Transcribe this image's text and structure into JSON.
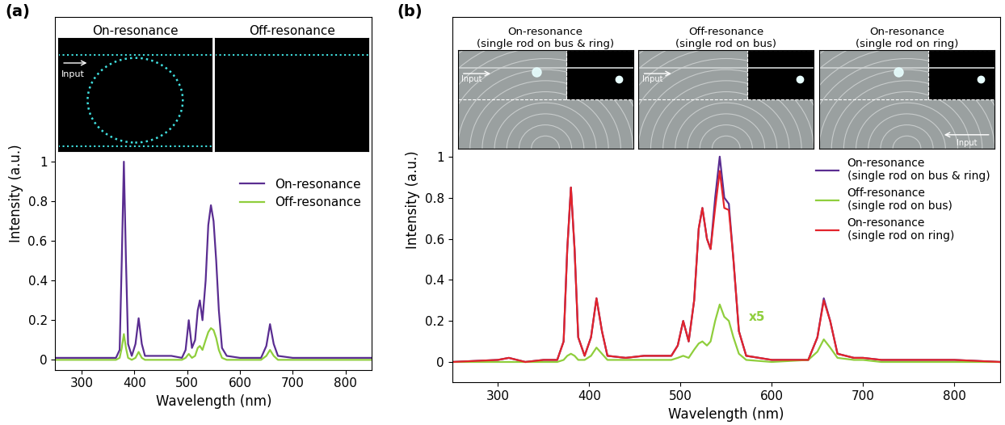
{
  "chart_data": [
    {
      "type": "line",
      "panel": "(a)",
      "x_label": "Wavelength (nm)",
      "y_label": "Intensity (a.u.)",
      "xlim": [
        250,
        850
      ],
      "xticks": [
        300,
        400,
        500,
        600,
        700,
        800
      ],
      "ylim": [
        -0.05,
        1.73
      ],
      "yticks": [
        0,
        0.2,
        0.4,
        0.6,
        0.8,
        1
      ],
      "legend": "center right",
      "insets": [
        {
          "title": "On-resonance",
          "input": "Input"
        },
        {
          "title": "Off-resonance"
        }
      ],
      "x": [
        250,
        300,
        350,
        365,
        372,
        376,
        380,
        384,
        388,
        395,
        402,
        408,
        414,
        420,
        440,
        470,
        490,
        497,
        503,
        509,
        515,
        520,
        524,
        529,
        535,
        540,
        545,
        550,
        555,
        560,
        566,
        575,
        600,
        640,
        650,
        657,
        664,
        672,
        700,
        750,
        800,
        850
      ],
      "series": [
        {
          "name": "On-resonance",
          "color": "#5a2d91",
          "values": [
            0.01,
            0.01,
            0.01,
            0.01,
            0.05,
            0.5,
            1.0,
            0.5,
            0.08,
            0.02,
            0.08,
            0.21,
            0.08,
            0.02,
            0.02,
            0.02,
            0.01,
            0.05,
            0.2,
            0.06,
            0.1,
            0.25,
            0.3,
            0.2,
            0.4,
            0.68,
            0.78,
            0.7,
            0.5,
            0.25,
            0.06,
            0.02,
            0.01,
            0.01,
            0.07,
            0.18,
            0.08,
            0.02,
            0.01,
            0.01,
            0.01,
            0.01
          ]
        },
        {
          "name": "Off-resonance",
          "color": "#8fce3c",
          "values": [
            0,
            0,
            0,
            0,
            0.01,
            0.06,
            0.13,
            0.06,
            0.01,
            0,
            0.01,
            0.04,
            0.01,
            0,
            0,
            0,
            0,
            0.01,
            0.03,
            0.01,
            0.02,
            0.06,
            0.07,
            0.05,
            0.1,
            0.14,
            0.16,
            0.15,
            0.11,
            0.05,
            0.01,
            0,
            0,
            0,
            0.02,
            0.05,
            0.02,
            0,
            0,
            0,
            0,
            0
          ]
        }
      ]
    },
    {
      "type": "line",
      "panel": "(b)",
      "x_label": "Wavelength (nm)",
      "y_label": "Intensity (a.u.)",
      "xlim": [
        250,
        850
      ],
      "xticks": [
        300,
        400,
        500,
        600,
        700,
        800
      ],
      "ylim": [
        -0.1,
        1.68
      ],
      "yticks": [
        0,
        0.2,
        0.4,
        0.6,
        0.8,
        1
      ],
      "legend": "center right",
      "insets": [
        {
          "title": "On-resonance\n(single rod on bus & ring)",
          "input": "Input"
        },
        {
          "title": "Off-resonance\n(single rod on bus)",
          "input": "Input"
        },
        {
          "title": "On-resonance\n(single rod on ring)",
          "input": "Input"
        }
      ],
      "annotations": [
        {
          "text": "x5",
          "x": 575,
          "y": 0.2,
          "color": "#8fce3c"
        }
      ],
      "x": [
        250,
        300,
        312,
        330,
        350,
        365,
        372,
        376,
        380,
        384,
        388,
        395,
        402,
        408,
        414,
        420,
        440,
        460,
        490,
        497,
        503,
        509,
        515,
        520,
        524,
        529,
        533,
        538,
        543,
        548,
        553,
        558,
        564,
        572,
        600,
        640,
        650,
        657,
        664,
        672,
        690,
        700,
        720,
        750,
        800,
        850
      ],
      "series": [
        {
          "name": "On-resonance\n(single rod on bus & ring)",
          "color": "#5a2d91",
          "values": [
            0.0,
            0.01,
            0.02,
            0.0,
            0.01,
            0.01,
            0.1,
            0.55,
            0.85,
            0.55,
            0.12,
            0.03,
            0.12,
            0.31,
            0.15,
            0.03,
            0.02,
            0.03,
            0.03,
            0.08,
            0.2,
            0.1,
            0.3,
            0.65,
            0.75,
            0.6,
            0.55,
            0.8,
            1.0,
            0.8,
            0.77,
            0.5,
            0.15,
            0.03,
            0.01,
            0.01,
            0.12,
            0.31,
            0.2,
            0.04,
            0.02,
            0.02,
            0.01,
            0.01,
            0.01,
            0.0
          ]
        },
        {
          "name": "Off-resonance\n(single rod on bus)",
          "color": "#8fce3c",
          "values": [
            0,
            0,
            0,
            0,
            0,
            0,
            0.01,
            0.03,
            0.04,
            0.03,
            0.01,
            0.01,
            0.03,
            0.07,
            0.04,
            0.01,
            0.01,
            0.01,
            0.01,
            0.02,
            0.03,
            0.02,
            0.06,
            0.09,
            0.1,
            0.08,
            0.1,
            0.2,
            0.28,
            0.22,
            0.2,
            0.12,
            0.04,
            0.01,
            0,
            0.01,
            0.05,
            0.11,
            0.07,
            0.02,
            0.01,
            0.01,
            0,
            0,
            0,
            0
          ]
        },
        {
          "name": "On-resonance\n(single rod on ring)",
          "color": "#e3242b",
          "values": [
            0.0,
            0.01,
            0.02,
            0.0,
            0.01,
            0.01,
            0.1,
            0.55,
            0.85,
            0.55,
            0.12,
            0.03,
            0.12,
            0.31,
            0.15,
            0.03,
            0.02,
            0.03,
            0.03,
            0.08,
            0.2,
            0.1,
            0.3,
            0.65,
            0.75,
            0.6,
            0.55,
            0.75,
            0.93,
            0.75,
            0.74,
            0.5,
            0.15,
            0.03,
            0.01,
            0.01,
            0.12,
            0.3,
            0.2,
            0.04,
            0.02,
            0.02,
            0.01,
            0.01,
            0.01,
            0.0
          ]
        }
      ]
    }
  ]
}
